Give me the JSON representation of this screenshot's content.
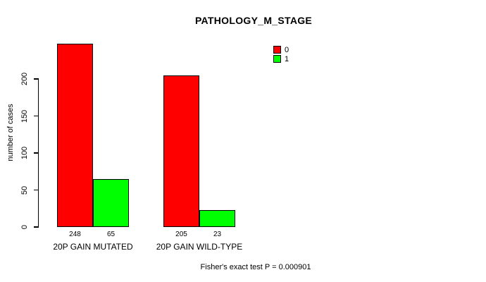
{
  "chart_data": {
    "type": "bar",
    "title": "PATHOLOGY_M_STAGE",
    "ylabel": "number of cases",
    "xlabel": "",
    "categories": [
      "20P GAIN MUTATED",
      "20P GAIN WILD-TYPE"
    ],
    "series": [
      {
        "name": "0",
        "color": "#ff0000",
        "values": [
          248,
          205
        ]
      },
      {
        "name": "1",
        "color": "#00ff00",
        "values": [
          65,
          23
        ]
      }
    ],
    "yticks": [
      0,
      50,
      100,
      150,
      200
    ],
    "ylim": [
      0,
      260
    ],
    "grid": false,
    "legend_position": "top-right",
    "bar_value_labels_shown": true,
    "annotation": "Fisher's exact test P = 0.000901"
  },
  "colors": {
    "background": "#ffffff",
    "axis": "#000000",
    "text": "#000000"
  }
}
